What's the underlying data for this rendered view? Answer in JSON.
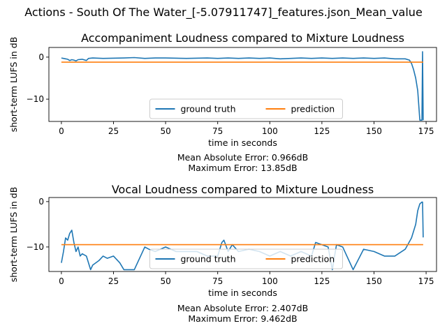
{
  "figure": {
    "suptitle": "Actions - South Of The Water_[-5.07911747]_features.json_Mean_value"
  },
  "colors": {
    "ground_truth": "#1f77b4",
    "prediction": "#ff7f0e",
    "axis": "#000000"
  },
  "chart_data": [
    {
      "type": "line",
      "title": "Accompaniment Loudness compared to Mixture Loudness",
      "xlabel": "time in seconds",
      "ylabel": "short-term LUFS in dB",
      "xlim": [
        -6,
        180
      ],
      "ylim": [
        -15.3,
        2.3
      ],
      "xticks": [
        0,
        25,
        50,
        75,
        100,
        125,
        150,
        175
      ],
      "yticks": [
        0,
        -10
      ],
      "ytick_labels": [
        "0",
        "−10"
      ],
      "grid": false,
      "legend": {
        "placement": "lower center",
        "columns": 2
      },
      "metrics": [
        "Mean Absolute Error: 0.966dB",
        "Maximum Error: 13.85dB"
      ],
      "series": [
        {
          "name": "ground truth",
          "x": [
            0,
            1,
            2,
            3,
            4,
            5,
            6,
            7,
            8,
            10,
            12,
            13,
            15,
            20,
            30,
            35,
            40,
            45,
            50,
            60,
            70,
            75,
            80,
            85,
            90,
            95,
            100,
            105,
            110,
            115,
            120,
            125,
            130,
            135,
            140,
            145,
            150,
            155,
            160,
            165,
            167,
            168,
            169,
            170,
            171,
            172,
            172.5,
            173,
            173.3,
            173.6
          ],
          "y": [
            -0.2,
            -0.3,
            -0.4,
            -0.5,
            -0.8,
            -0.6,
            -0.7,
            -0.9,
            -0.6,
            -0.5,
            -0.8,
            -0.3,
            -0.2,
            -0.3,
            -0.2,
            -0.1,
            -0.3,
            -0.2,
            -0.2,
            -0.3,
            -0.2,
            -0.3,
            -0.2,
            -0.3,
            -0.2,
            -0.3,
            -0.2,
            -0.4,
            -0.3,
            -0.2,
            -0.3,
            -0.2,
            -0.3,
            -0.2,
            -0.3,
            -0.2,
            -0.3,
            -0.2,
            -0.4,
            -0.4,
            -0.7,
            -1.5,
            -3.0,
            -5.0,
            -8.0,
            -15.0,
            -15.0,
            -15.0,
            1.3,
            -15.0
          ]
        },
        {
          "name": "prediction",
          "x": [
            0,
            173.6
          ],
          "y": [
            -1.2,
            -1.2
          ]
        }
      ]
    },
    {
      "type": "line",
      "title": "Vocal Loudness compared to Mixture Loudness",
      "xlabel": "time in seconds",
      "ylabel": "short-term LUFS in dB",
      "xlim": [
        -6,
        180
      ],
      "ylim": [
        -15.4,
        0.9
      ],
      "xticks": [
        0,
        25,
        50,
        75,
        100,
        125,
        150,
        175
      ],
      "yticks": [
        0,
        -10
      ],
      "ytick_labels": [
        "0",
        "−10"
      ],
      "grid": false,
      "legend": {
        "placement": "lower center",
        "columns": 2
      },
      "metrics": [
        "Mean Absolute Error: 2.407dB",
        "Maximum Error: 9.462dB"
      ],
      "series": [
        {
          "name": "ground truth",
          "x": [
            0,
            1,
            2,
            3,
            4,
            5,
            6,
            7,
            8,
            9,
            10,
            12,
            13,
            14,
            15,
            18,
            20,
            22,
            25,
            28,
            30,
            32,
            35,
            40,
            42,
            45,
            50,
            55,
            60,
            65,
            70,
            75,
            77,
            78,
            80,
            82,
            85,
            90,
            95,
            100,
            105,
            110,
            115,
            120,
            122,
            125,
            128,
            130,
            132,
            135,
            140,
            145,
            150,
            155,
            160,
            165,
            168,
            170,
            171,
            172,
            173,
            173.3,
            173.6
          ],
          "y": [
            -13.5,
            -11,
            -8,
            -8.5,
            -7,
            -6.3,
            -9,
            -11,
            -10,
            -12,
            -11.5,
            -12,
            -13.5,
            -15,
            -14,
            -13,
            -12,
            -12.5,
            -12,
            -13.5,
            -15,
            -15,
            -15,
            -10,
            -10.5,
            -11,
            -10,
            -11,
            -11,
            -11,
            -12,
            -12,
            -9,
            -8.5,
            -11,
            -9.5,
            -11,
            -10.5,
            -11,
            -12,
            -11,
            -12,
            -11,
            -12,
            -9,
            -9.5,
            -10,
            -15,
            -9.5,
            -10,
            -15,
            -10.5,
            -11,
            -12,
            -12,
            -10.5,
            -8,
            -5,
            -2,
            -0.5,
            -0.1,
            -0.1,
            -7.9
          ]
        },
        {
          "name": "prediction",
          "x": [
            0,
            173.6
          ],
          "y": [
            -9.5,
            -9.5
          ]
        }
      ]
    }
  ]
}
